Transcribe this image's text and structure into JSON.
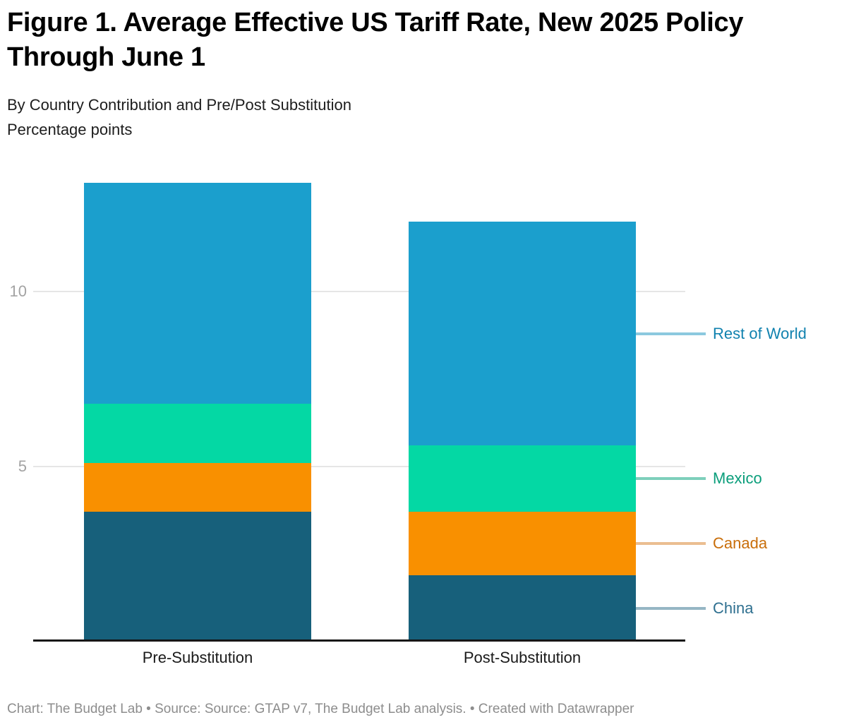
{
  "header": {
    "title": "Figure 1. Average Effective US Tariff Rate, New 2025 Policy\nThrough June 1",
    "subtitle_line1": "By Country Contribution and Pre/Post Substitution",
    "subtitle_line2": "Percentage points"
  },
  "chart_data": {
    "type": "bar",
    "stacked": true,
    "title": "Figure 1. Average Effective US Tariff Rate, New 2025 Policy Through June 1",
    "subtitle": "By Country Contribution and Pre/Post Substitution",
    "ylabel": "Percentage points",
    "categories": [
      "Pre-Substitution",
      "Post-Substitution"
    ],
    "series": [
      {
        "name": "China",
        "values": [
          3.7,
          1.9
        ],
        "color": "#17607B",
        "label_color": "#2F7090",
        "connector_color": "#95B6C4"
      },
      {
        "name": "Canada",
        "values": [
          1.4,
          1.8
        ],
        "color": "#F99000",
        "label_color": "#C96E0A",
        "connector_color": "#EBBE91"
      },
      {
        "name": "Mexico",
        "values": [
          1.7,
          1.9
        ],
        "color": "#04D8A4",
        "label_color": "#0B9E7B",
        "connector_color": "#7ECFBB"
      },
      {
        "name": "Rest of World",
        "values": [
          6.3,
          6.4
        ],
        "color": "#1B9FCD",
        "label_color": "#1182AF",
        "connector_color": "#8CC9DF"
      }
    ],
    "stack_order": "bottom-to-top as listed",
    "totals": [
      13.1,
      12.0
    ],
    "yticks": [
      5,
      10
    ],
    "ylim": [
      0,
      13.2
    ],
    "grid": "horizontal",
    "gridline_color": "#e6e6e6",
    "axis_line_color": "#161616",
    "legend_position": "right-annotations"
  },
  "footer": {
    "text": "Chart: The Budget Lab • Source: Source: GTAP v7, The Budget Lab analysis. • Created with Datawrapper"
  }
}
